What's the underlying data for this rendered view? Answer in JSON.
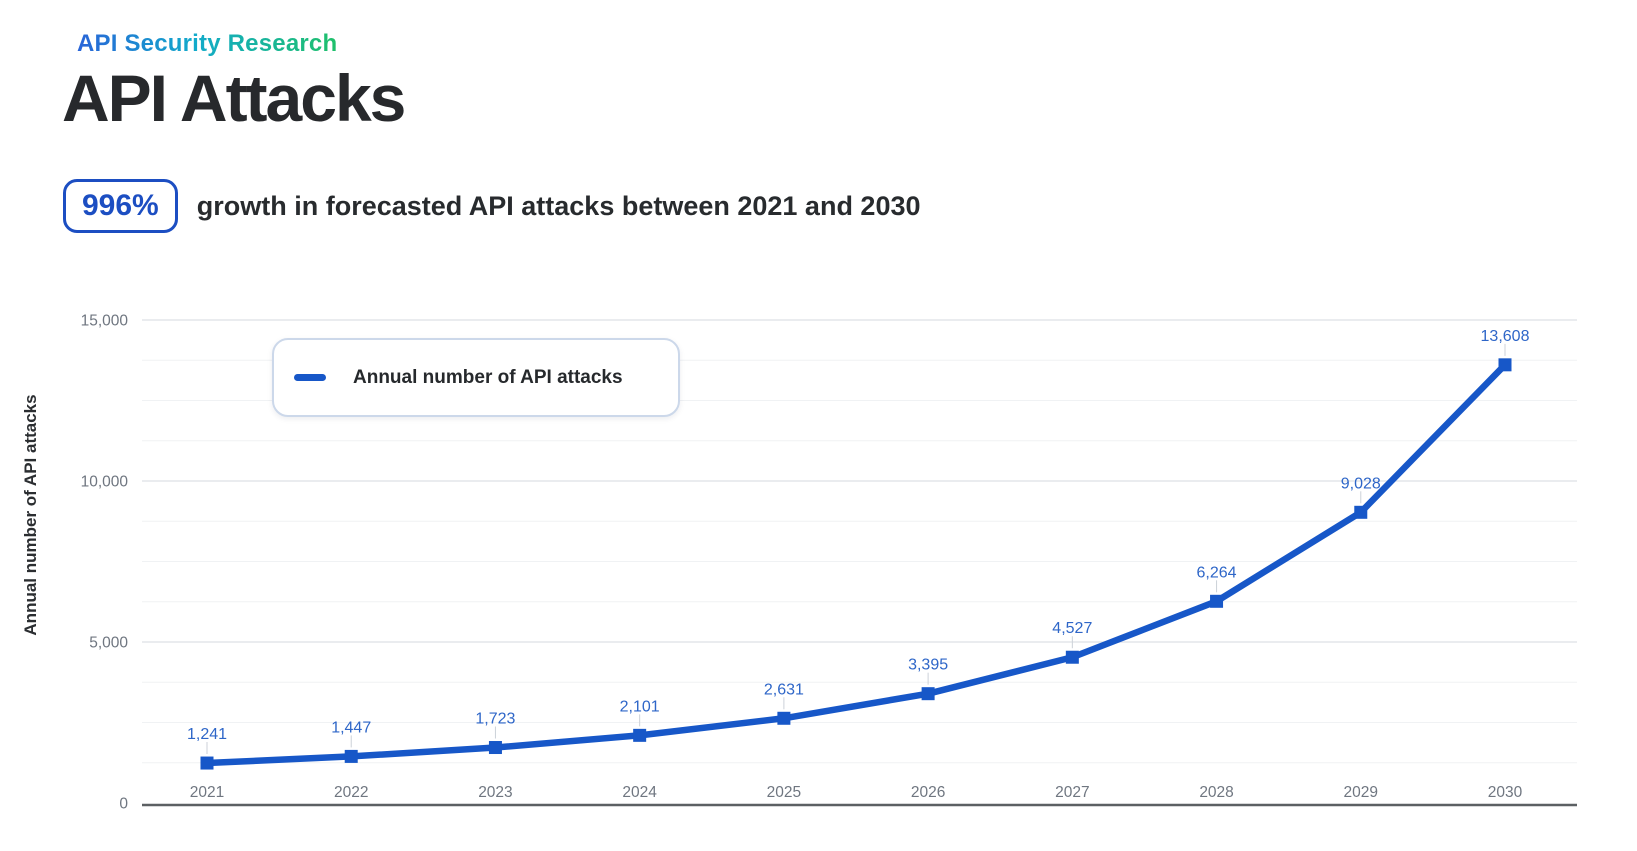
{
  "page": {
    "kicker": "API Security Research",
    "title": "API Attacks",
    "stat": {
      "value": "996%",
      "text": "growth in forecasted API attacks between 2021 and 2030"
    }
  },
  "colors": {
    "line": "#1757c8",
    "marker": "#1757c8",
    "data_label": "#2e66c8",
    "badge_blue": "#1c4ec2",
    "kicker_gradient": [
      "#2964d8",
      "#12aacb",
      "#1fc06a"
    ],
    "grid_major": "#e3e6ea",
    "grid_minor": "#f0f2f4",
    "axis_line": "#5c6063",
    "tick_text": "#6f7680",
    "leader_line": "#ccd1d8"
  },
  "chart_data": {
    "type": "line",
    "x": [
      "2021",
      "2022",
      "2023",
      "2024",
      "2025",
      "2026",
      "2027",
      "2028",
      "2029",
      "2030"
    ],
    "series": [
      {
        "name": "Annual number of API attacks",
        "values": [
          1241,
          1447,
          1723,
          2101,
          2631,
          3395,
          4527,
          6264,
          9028,
          13608
        ]
      }
    ],
    "data_labels": [
      "1,241",
      "1,447",
      "1,723",
      "2,101",
      "2,631",
      "3,395",
      "4,527",
      "6,264",
      "9,028",
      "13,608"
    ],
    "ylabel": "Annual number of API attacks",
    "xlabel": "",
    "ylim": [
      0,
      15000
    ],
    "yticks": [
      {
        "v": 0,
        "label": "0"
      },
      {
        "v": 5000,
        "label": "5,000"
      },
      {
        "v": 10000,
        "label": "10,000"
      },
      {
        "v": 15000,
        "label": "15,000"
      }
    ],
    "minor_grid_step": 1250,
    "grid": "horizontal",
    "legend": {
      "position": "top-left-inside",
      "entries": [
        "Annual number of API attacks"
      ]
    }
  }
}
